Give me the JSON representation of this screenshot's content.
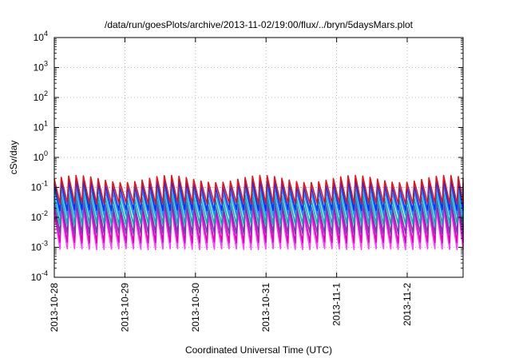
{
  "chart_data": {
    "type": "line",
    "title": "/data/run/goesPlots/archive/2013-11-02/19:00/flux/../bryn/5daysMars.plot",
    "xlabel": "Coordinated Universal Time (UTC)",
    "ylabel": "cSv/day",
    "x_scale": "date",
    "y_scale": "log",
    "xlim": [
      "2013-10-28T00:00",
      "2013-11-02T19:00"
    ],
    "ylim": [
      0.0001,
      10000
    ],
    "x_ticks": [
      "2013-10-28",
      "2013-10-29",
      "2013-10-30",
      "2013-10-31",
      "2013-11-1",
      "2013-11-2"
    ],
    "y_ticks": [
      {
        "base": "10",
        "exp": "-4",
        "value": 0.0001
      },
      {
        "base": "10",
        "exp": "-3",
        "value": 0.001
      },
      {
        "base": "10",
        "exp": "-2",
        "value": 0.01
      },
      {
        "base": "10",
        "exp": "-1",
        "value": 0.1
      },
      {
        "base": "10",
        "exp": "0",
        "value": 1
      },
      {
        "base": "10",
        "exp": "1",
        "value": 10
      },
      {
        "base": "10",
        "exp": "2",
        "value": 100
      },
      {
        "base": "10",
        "exp": "3",
        "value": 1000
      },
      {
        "base": "10",
        "exp": "4",
        "value": 10000
      }
    ],
    "grid": true,
    "reference_line": {
      "value": 0.1,
      "color": "#ff9999",
      "style": "dotted"
    },
    "pattern": "sawtooth",
    "period_hours": 2.5,
    "series": [
      {
        "color": "#e8101c",
        "peak": 0.19,
        "trough": 0.03
      },
      {
        "color": "#0030ff",
        "peak": 0.13,
        "trough": 0.018
      },
      {
        "color": "#1e90ff",
        "peak": 0.085,
        "trough": 0.012
      },
      {
        "color": "#00b3b3",
        "peak": 0.05,
        "trough": 0.006
      },
      {
        "color": "#6a3fb0",
        "peak": 0.03,
        "trough": 0.003
      },
      {
        "color": "#e000c0",
        "peak": 0.022,
        "trough": 0.0015
      },
      {
        "color": "#ff40ff",
        "peak": 0.014,
        "trough": 0.0009
      }
    ]
  }
}
